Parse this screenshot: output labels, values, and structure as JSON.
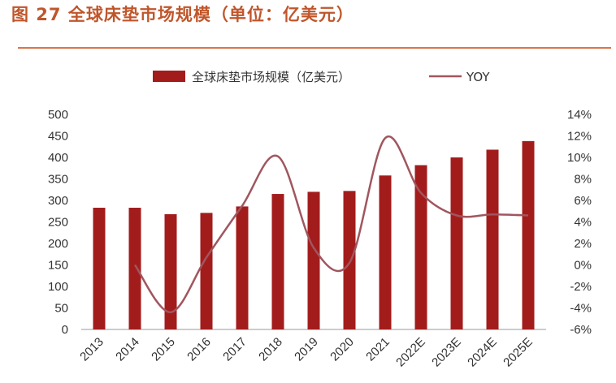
{
  "header": {
    "figure_label": "图 27",
    "title": "全球床垫市场规模（单位：亿美元）"
  },
  "colors": {
    "title": "#c0562b",
    "rule": "#d9754a",
    "bar": "#a31c1c",
    "line": "#a0565e"
  },
  "chart_data": {
    "type": "bar",
    "categories": [
      "2013",
      "2014",
      "2015",
      "2016",
      "2017",
      "2018",
      "2019",
      "2020",
      "2021",
      "2022E",
      "2023E",
      "2024E",
      "2025E"
    ],
    "series": [
      {
        "name": "全球床垫市场规模（亿美元）",
        "type": "bar",
        "axis": "left",
        "values": [
          283,
          283,
          268,
          271,
          286,
          315,
          320,
          322,
          358,
          382,
          400,
          418,
          438
        ]
      },
      {
        "name": "YOY",
        "type": "line",
        "axis": "right",
        "values": [
          null,
          0.0,
          -4.4,
          0.7,
          5.5,
          10.1,
          1.6,
          0.2,
          11.8,
          6.7,
          4.6,
          4.7,
          4.6
        ]
      }
    ],
    "left_axis": {
      "min": 0,
      "max": 500,
      "step": 50,
      "ticks": [
        "0",
        "50",
        "100",
        "150",
        "200",
        "250",
        "300",
        "350",
        "400",
        "450",
        "500"
      ]
    },
    "right_axis": {
      "min": -6,
      "max": 14,
      "step": 2,
      "ticks": [
        "-6%",
        "-4%",
        "-2%",
        "0%",
        "2%",
        "4%",
        "6%",
        "8%",
        "10%",
        "12%",
        "14%"
      ]
    },
    "legend": {
      "position": "top-center",
      "bar_label": "全球床垫市场规模（亿美元）",
      "line_label": "YOY"
    },
    "grid": false
  }
}
